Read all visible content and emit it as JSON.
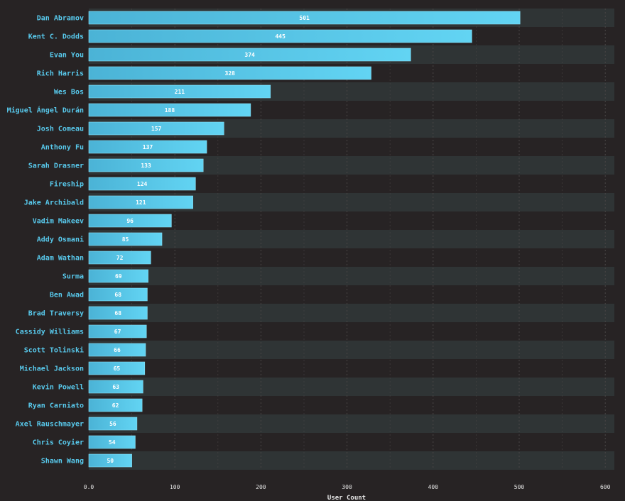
{
  "chart_data": {
    "type": "bar",
    "orientation": "horizontal",
    "categories": [
      "Dan Abramov",
      "Kent C. Dodds",
      "Evan You",
      "Rich Harris",
      "Wes Bos",
      "Miguel Ángel Durán",
      "Josh Comeau",
      "Anthony Fu",
      "Sarah Drasner",
      "Fireship",
      "Jake Archibald",
      "Vadim Makeev",
      "Addy Osmani",
      "Adam Wathan",
      "Surma",
      "Ben Awad",
      "Brad Traversy",
      "Cassidy Williams",
      "Scott Tolinski",
      "Michael Jackson",
      "Kevin Powell",
      "Ryan Carniato",
      "Axel Rauschmayer",
      "Chris Coyier",
      "Shawn Wang"
    ],
    "values": [
      501,
      445,
      374,
      328,
      211,
      188,
      157,
      137,
      133,
      124,
      121,
      96,
      85,
      72,
      69,
      68,
      68,
      67,
      66,
      65,
      63,
      62,
      56,
      54,
      50
    ],
    "xlabel": "User Count",
    "ylabel": "",
    "xlim": [
      0,
      612
    ],
    "xticks": [
      {
        "value": 0,
        "label": "0.0"
      },
      {
        "value": 100,
        "label": "100"
      },
      {
        "value": 200,
        "label": "200"
      },
      {
        "value": 300,
        "label": "300"
      },
      {
        "value": 400,
        "label": "400"
      },
      {
        "value": 500,
        "label": "500"
      },
      {
        "value": 600,
        "label": "600"
      }
    ],
    "minor_gridlines": [
      50,
      150,
      250,
      350,
      450,
      550
    ],
    "grid": true,
    "legend": "none",
    "colors": {
      "background": "#272324",
      "band_alt": "#2f3435",
      "bar_start": "#4bb3d6",
      "bar_end": "#62d4f3",
      "bar_stroke": "#87e0f7",
      "category_text": "#58c9ec",
      "value_text": "#ffffff",
      "axis_text": "#e6e6e6",
      "grid": "#4a4646"
    }
  }
}
